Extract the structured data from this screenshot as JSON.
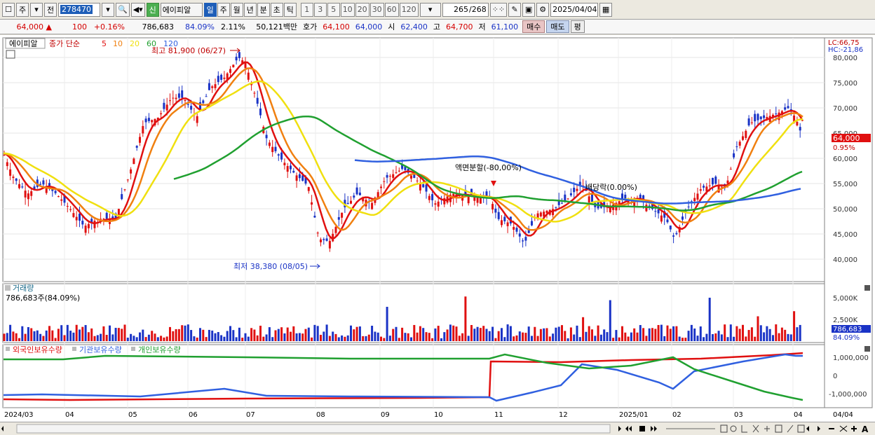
{
  "toolbar": {
    "period_type": "주",
    "prev_label": "전",
    "stock_code": "278470",
    "stock_name": "에이피알",
    "credit_badge": "신",
    "periods": [
      "일",
      "주",
      "월",
      "년",
      "분",
      "초",
      "틱"
    ],
    "active_period": "일",
    "intervals": [
      "1",
      "3",
      "5",
      "10",
      "20",
      "30",
      "60",
      "120"
    ],
    "count_shown": "265",
    "count_total": "/268",
    "date": "2025/04/04"
  },
  "quote": {
    "price": "64,000",
    "change_symbol": "▲",
    "change": "100",
    "change_pct": "+0.16%",
    "volume": "786,683",
    "vol_ratio": "84.09%",
    "turnover": "2.11%",
    "amount": "50,121백만",
    "bid_label": "호가",
    "bid1": "64,100",
    "bid2": "64,000",
    "open_label": "시",
    "open": "62,400",
    "high_label": "고",
    "high": "64,700",
    "low_label": "저",
    "low": "61,100",
    "buy_label": "매수",
    "sell_label": "매도",
    "eval_label": "평"
  },
  "legend": {
    "name": "에이피알",
    "price_label": "종가 단순",
    "ma": [
      {
        "period": "5",
        "color": "#e01010"
      },
      {
        "period": "10",
        "color": "#f08010"
      },
      {
        "period": "20",
        "color": "#f0e010"
      },
      {
        "period": "60",
        "color": "#20a030"
      },
      {
        "period": "120",
        "color": "#3060e0"
      }
    ],
    "lc": "LC:66,75",
    "hc": "HC:-21,86"
  },
  "annotations": {
    "high": "최고 81,900 (06/27)",
    "low": "최저 38,380 (08/05)",
    "split": "액면분할(-80,00%)",
    "other": "배당락(0.00%)"
  },
  "price_axis": [
    "80,000",
    "75,000",
    "70,000",
    "65,000",
    "60,000",
    "55,000",
    "50,000",
    "45,000",
    "40,000"
  ],
  "last_price_tag": "64,000",
  "last_pct_tag": "0.95%",
  "volume_panel": {
    "title": "거래량",
    "summary": "786,683주(84.09%)",
    "axis": [
      "5,000K",
      "2,500K"
    ],
    "tag": "786,683",
    "tag_pct": "84.09%"
  },
  "holding_panel": {
    "series": [
      {
        "name": "외국인보유수량",
        "color": "#e01010"
      },
      {
        "name": "기관보유수량",
        "color": "#3060e0"
      },
      {
        "name": "개인보유수량",
        "color": "#20a030"
      }
    ],
    "axis": [
      "1,000,000",
      "0",
      "-1,000,000"
    ]
  },
  "time_axis": [
    "2024/03",
    "04",
    "05",
    "06",
    "07",
    "08",
    "09",
    "10",
    "11",
    "12",
    "2025/01",
    "02",
    "03",
    "04",
    "04/04"
  ],
  "icons": [
    "checkbox-icon",
    "search-icon",
    "speaker-icon",
    "grid-icon",
    "save-icon",
    "gear-icon",
    "calendar-icon"
  ]
}
